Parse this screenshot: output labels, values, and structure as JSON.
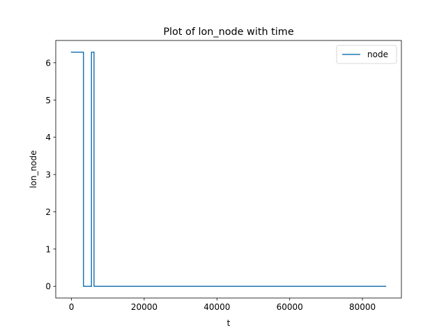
{
  "chart_data": {
    "type": "line",
    "title": "Plot of lon_node with time",
    "xlabel": "t",
    "ylabel": "lon_node",
    "xlim": [
      -4320,
      90720
    ],
    "ylim": [
      -0.314,
      6.597
    ],
    "x_ticks": [
      0,
      20000,
      40000,
      60000,
      80000
    ],
    "y_ticks": [
      0,
      1,
      2,
      3,
      4,
      5,
      6
    ],
    "grid": false,
    "legend_position": "top-right",
    "series": [
      {
        "name": "node",
        "color": "#1f77b4",
        "x": [
          0,
          3300,
          3300,
          5500,
          5500,
          6200,
          6200,
          86400
        ],
        "y": [
          6.283,
          6.283,
          0,
          0,
          6.283,
          6.283,
          0,
          0
        ]
      }
    ]
  }
}
